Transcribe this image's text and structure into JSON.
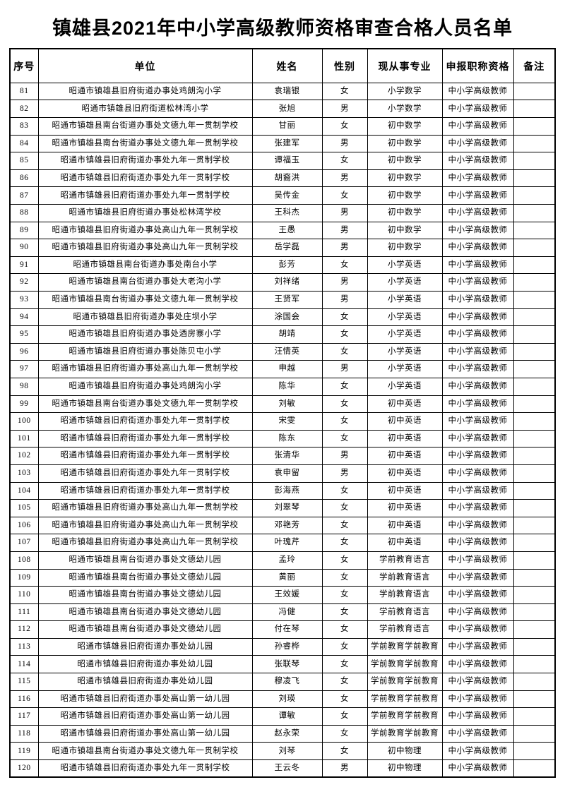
{
  "page": {
    "title": "镇雄县2021年中小学高级教师资格审查合格人员名单"
  },
  "table": {
    "headers": [
      "序号",
      "单位",
      "姓名",
      "性别",
      "现从事专业",
      "申报职称资格",
      "备注"
    ],
    "rows": [
      [
        "81",
        "昭通市镇雄县旧府街道办事处鸡朗沟小学",
        "袁瑞银",
        "女",
        "小学数学",
        "中小学高级教师",
        ""
      ],
      [
        "82",
        "昭通市镇雄县旧府街道松林湾小学",
        "张旭",
        "男",
        "小学数学",
        "中小学高级教师",
        ""
      ],
      [
        "83",
        "昭通市镇雄县南台街道办事处文德九年一贯制学校",
        "甘丽",
        "女",
        "初中数学",
        "中小学高级教师",
        ""
      ],
      [
        "84",
        "昭通市镇雄县南台街道办事处文德九年一贯制学校",
        "张建军",
        "男",
        "初中数学",
        "中小学高级教师",
        ""
      ],
      [
        "85",
        "昭通市镇雄县旧府街道办事处九年一贯制学校",
        "谭福玉",
        "女",
        "初中数学",
        "中小学高级教师",
        ""
      ],
      [
        "86",
        "昭通市镇雄县旧府街道办事处九年一贯制学校",
        "胡裔洪",
        "男",
        "初中数学",
        "中小学高级教师",
        ""
      ],
      [
        "87",
        "昭通市镇雄县旧府街道办事处九年一贯制学校",
        "吴传金",
        "女",
        "初中数学",
        "中小学高级教师",
        ""
      ],
      [
        "88",
        "昭通市镇雄县旧府街道办事处松林湾学校",
        "王科杰",
        "男",
        "初中数学",
        "中小学高级教师",
        ""
      ],
      [
        "89",
        "昭通市镇雄县旧府街道办事处高山九年一贯制学校",
        "王愚",
        "男",
        "初中数学",
        "中小学高级教师",
        ""
      ],
      [
        "90",
        "昭通市镇雄县旧府街道办事处高山九年一贯制学校",
        "岳学磊",
        "男",
        "初中数学",
        "中小学高级教师",
        ""
      ],
      [
        "91",
        "昭通市镇雄县南台街道办事处南台小学",
        "彭芳",
        "女",
        "小学英语",
        "中小学高级教师",
        ""
      ],
      [
        "92",
        "昭通市镇雄县南台街道办事处大老沟小学",
        "刘祥绪",
        "男",
        "小学英语",
        "中小学高级教师",
        ""
      ],
      [
        "93",
        "昭通市镇雄县南台街道办事处文德九年一贯制学校",
        "王贤军",
        "男",
        "小学英语",
        "中小学高级教师",
        ""
      ],
      [
        "94",
        "昭通市镇雄县旧府街道办事处庄坝小学",
        "涂国会",
        "女",
        "小学英语",
        "中小学高级教师",
        ""
      ],
      [
        "95",
        "昭通市镇雄县旧府街道办事处酒房寨小学",
        "胡靖",
        "女",
        "小学英语",
        "中小学高级教师",
        ""
      ],
      [
        "96",
        "昭通市镇雄县旧府街道办事处陈贝屯小学",
        "汪情英",
        "女",
        "小学英语",
        "中小学高级教师",
        ""
      ],
      [
        "97",
        "昭通市镇雄县旧府街道办事处高山九年一贯制学校",
        "申越",
        "男",
        "小学英语",
        "中小学高级教师",
        ""
      ],
      [
        "98",
        "昭通市镇雄县旧府街道办事处鸡朗沟小学",
        "陈华",
        "女",
        "小学英语",
        "中小学高级教师",
        ""
      ],
      [
        "99",
        "昭通市镇雄县南台街道办事处文德九年一贯制学校",
        "刘敏",
        "女",
        "初中英语",
        "中小学高级教师",
        ""
      ],
      [
        "100",
        "昭通市镇雄县旧府街道办事处九年一贯制学校",
        "宋雯",
        "女",
        "初中英语",
        "中小学高级教师",
        ""
      ],
      [
        "101",
        "昭通市镇雄县旧府街道办事处九年一贯制学校",
        "陈东",
        "女",
        "初中英语",
        "中小学高级教师",
        ""
      ],
      [
        "102",
        "昭通市镇雄县旧府街道办事处九年一贯制学校",
        "张清华",
        "男",
        "初中英语",
        "中小学高级教师",
        ""
      ],
      [
        "103",
        "昭通市镇雄县旧府街道办事处九年一贯制学校",
        "袁申留",
        "男",
        "初中英语",
        "中小学高级教师",
        ""
      ],
      [
        "104",
        "昭通市镇雄县旧府街道办事处九年一贯制学校",
        "彭海燕",
        "女",
        "初中英语",
        "中小学高级教师",
        ""
      ],
      [
        "105",
        "昭通市镇雄县旧府街道办事处高山九年一贯制学校",
        "刘翠琴",
        "女",
        "初中英语",
        "中小学高级教师",
        ""
      ],
      [
        "106",
        "昭通市镇雄县旧府街道办事处高山九年一贯制学校",
        "邓艳芳",
        "女",
        "初中英语",
        "中小学高级教师",
        ""
      ],
      [
        "107",
        "昭通市镇雄县旧府街道办事处高山九年一贯制学校",
        "叶瑰芹",
        "女",
        "初中英语",
        "中小学高级教师",
        ""
      ],
      [
        "108",
        "昭通市镇雄县南台街道办事处文德幼儿园",
        "孟玲",
        "女",
        "学前教育语言",
        "中小学高级教师",
        ""
      ],
      [
        "109",
        "昭通市镇雄县南台街道办事处文德幼儿园",
        "黄丽",
        "女",
        "学前教育语言",
        "中小学高级教师",
        ""
      ],
      [
        "110",
        "昭通市镇雄县南台街道办事处文德幼儿园",
        "王效媛",
        "女",
        "学前教育语言",
        "中小学高级教师",
        ""
      ],
      [
        "111",
        "昭通市镇雄县南台街道办事处文德幼儿园",
        "冯健",
        "女",
        "学前教育语言",
        "中小学高级教师",
        ""
      ],
      [
        "112",
        "昭通市镇雄县南台街道办事处文德幼儿园",
        "付在琴",
        "女",
        "学前教育语言",
        "中小学高级教师",
        ""
      ],
      [
        "113",
        "昭通市镇雄县旧府街道办事处幼儿园",
        "孙睿桦",
        "女",
        "学前教育学前教育",
        "中小学高级教师",
        ""
      ],
      [
        "114",
        "昭通市镇雄县旧府街道办事处幼儿园",
        "张联琴",
        "女",
        "学前教育学前教育",
        "中小学高级教师",
        ""
      ],
      [
        "115",
        "昭通市镇雄县旧府街道办事处幼儿园",
        "穆凌飞",
        "女",
        "学前教育学前教育",
        "中小学高级教师",
        ""
      ],
      [
        "116",
        "昭通市镇雄县旧府街道办事处高山第一幼儿园",
        "刘瑛",
        "女",
        "学前教育学前教育",
        "中小学高级教师",
        ""
      ],
      [
        "117",
        "昭通市镇雄县旧府街道办事处高山第一幼儿园",
        "谭敏",
        "女",
        "学前教育学前教育",
        "中小学高级教师",
        ""
      ],
      [
        "118",
        "昭通市镇雄县旧府街道办事处高山第一幼儿园",
        "赵永荣",
        "女",
        "学前教育学前教育",
        "中小学高级教师",
        ""
      ],
      [
        "119",
        "昭通市镇雄县南台街道办事处文德九年一贯制学校",
        "刘琴",
        "女",
        "初中物理",
        "中小学高级教师",
        ""
      ],
      [
        "120",
        "昭通市镇雄县旧府街道办事处九年一贯制学校",
        "王云冬",
        "男",
        "初中物理",
        "中小学高级教师",
        ""
      ]
    ]
  }
}
